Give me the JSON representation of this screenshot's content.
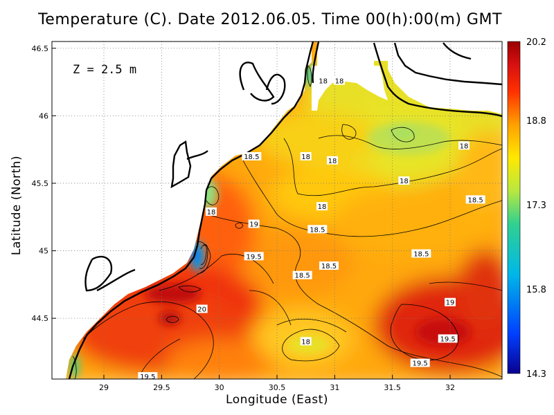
{
  "chart_data": {
    "type": "heatmap",
    "title": "Temperature (C). Date 2012.06.05. Time 00(h):00(m) GMT",
    "xlabel": "Longitude (East)",
    "ylabel": "Latitude (North)",
    "xlim": [
      28.55,
      32.45
    ],
    "ylim": [
      44.05,
      46.55
    ],
    "x_ticks": [
      29,
      29.5,
      30,
      30.5,
      31,
      31.5,
      32
    ],
    "y_ticks": [
      44.5,
      45,
      45.5,
      46,
      46.5
    ],
    "annotation": "Z = 2.5 m",
    "grid": true,
    "colorbar": {
      "min": 14.3,
      "max": 20.2,
      "tick_labels": [
        "20.2",
        "18.8",
        "17.3",
        "15.8",
        "14.3"
      ],
      "tick_values": [
        20.2,
        18.8,
        17.3,
        15.8,
        14.3
      ],
      "colors": [
        "#0a0090",
        "#0040ff",
        "#00b8e8",
        "#30d090",
        "#b8e840",
        "#ffe800",
        "#ffa000",
        "#ff3000",
        "#d81010",
        "#9a0000"
      ]
    },
    "contour_labels": [
      {
        "text": "18",
        "lon": 30.9,
        "lat": 46.26
      },
      {
        "text": "18",
        "lon": 31.04,
        "lat": 46.26
      },
      {
        "text": "18",
        "lon": 32.12,
        "lat": 45.78
      },
      {
        "text": "18.5",
        "lon": 30.28,
        "lat": 45.7
      },
      {
        "text": "18",
        "lon": 30.75,
        "lat": 45.7
      },
      {
        "text": "18",
        "lon": 30.98,
        "lat": 45.67
      },
      {
        "text": "18",
        "lon": 31.6,
        "lat": 45.52
      },
      {
        "text": "18.5",
        "lon": 32.22,
        "lat": 45.38
      },
      {
        "text": "18",
        "lon": 30.89,
        "lat": 45.33
      },
      {
        "text": "18",
        "lon": 29.93,
        "lat": 45.29
      },
      {
        "text": "19",
        "lon": 30.3,
        "lat": 45.2
      },
      {
        "text": "18.5",
        "lon": 30.85,
        "lat": 45.16
      },
      {
        "text": "19.5",
        "lon": 30.3,
        "lat": 44.96
      },
      {
        "text": "18.5",
        "lon": 31.75,
        "lat": 44.98
      },
      {
        "text": "18.5",
        "lon": 30.95,
        "lat": 44.89
      },
      {
        "text": "18.5",
        "lon": 30.72,
        "lat": 44.82
      },
      {
        "text": "19",
        "lon": 32.0,
        "lat": 44.62
      },
      {
        "text": "20",
        "lon": 29.85,
        "lat": 44.57
      },
      {
        "text": "18",
        "lon": 30.75,
        "lat": 44.33
      },
      {
        "text": "19.5",
        "lon": 31.98,
        "lat": 44.35
      },
      {
        "text": "19.5",
        "lon": 31.74,
        "lat": 44.17
      },
      {
        "text": "19.5",
        "lon": 29.38,
        "lat": 44.07
      }
    ],
    "features": [
      {
        "name": "warm-core-west",
        "lon": 29.7,
        "lat": 44.62,
        "value": 20.0
      },
      {
        "name": "warm-core-southeast",
        "lon": 32.1,
        "lat": 44.4,
        "value": 19.8
      },
      {
        "name": "cool-patch-north",
        "lon": 31.6,
        "lat": 45.85,
        "value": 17.6
      },
      {
        "name": "cool-patch-south",
        "lon": 30.8,
        "lat": 44.33,
        "value": 17.9
      },
      {
        "name": "cold-spot-coast",
        "lon": 29.77,
        "lat": 44.97,
        "value": 15.5
      }
    ]
  }
}
